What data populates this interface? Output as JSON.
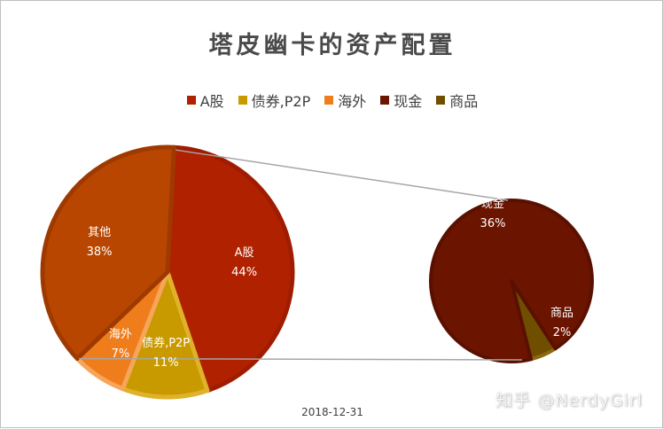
{
  "chart_data": {
    "type": "pie",
    "title": "塔皮幽卡的资产配置",
    "subtitle": "2018-12-31",
    "legend_position": "top",
    "legend": [
      {
        "name": "A股",
        "color": "#b02100"
      },
      {
        "name": "债券,P2P",
        "color": "#c89a00"
      },
      {
        "name": "海外",
        "color": "#f07d1c"
      },
      {
        "name": "现金",
        "color": "#6b1400"
      },
      {
        "name": "商品",
        "color": "#6f4e00"
      }
    ],
    "main_pie": {
      "slices": [
        {
          "name": "A股",
          "value": 44,
          "label": "44%",
          "color": "#b02100",
          "border": "#a01c00"
        },
        {
          "name": "债券,P2P",
          "value": 11,
          "label": "11%",
          "color": "#c89a00",
          "border": "#e0b22a"
        },
        {
          "name": "海外",
          "value": 7,
          "label": "7%",
          "color": "#f07d1c",
          "border": "#f6a55a"
        },
        {
          "name": "其他",
          "value": 38,
          "label": "38%",
          "color": "#b84600",
          "border": "#9e3a00"
        }
      ]
    },
    "secondary_pie": {
      "slices": [
        {
          "name": "现金",
          "value": 36,
          "label": "36%",
          "color": "#6b1400",
          "border": "#5a1000"
        },
        {
          "name": "商品",
          "value": 2,
          "label": "2%",
          "color": "#6f4e00",
          "border": "#8a6a10"
        }
      ]
    }
  },
  "watermark": "知乎 @NerdyGirl"
}
